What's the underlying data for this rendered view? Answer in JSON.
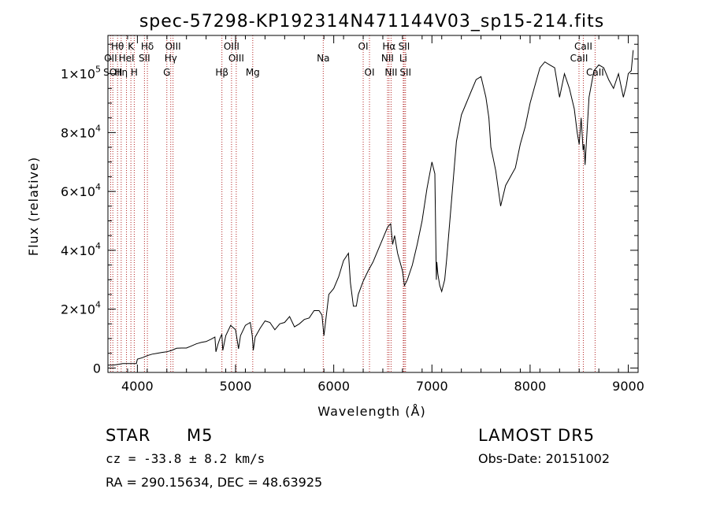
{
  "chart_data": {
    "type": "line",
    "title": "spec-57298-KP192314N471144V03_sp15-214.fits",
    "xlabel": "Wavelength (Å)",
    "ylabel": "Flux (relative)",
    "xlim": [
      3700,
      9100
    ],
    "ylim": [
      -1500,
      113000
    ],
    "x_ticks": [
      4000,
      5000,
      6000,
      7000,
      8000,
      9000
    ],
    "x_tick_labels": [
      "4000",
      "5000",
      "6000",
      "7000",
      "8000",
      "9000"
    ],
    "y_ticks": [
      0,
      20000,
      40000,
      60000,
      80000,
      100000
    ],
    "y_tick_labels": [
      {
        "mant": "0",
        "exp": ""
      },
      {
        "mant": "2×10",
        "exp": "4"
      },
      {
        "mant": "4×10",
        "exp": "4"
      },
      {
        "mant": "6×10",
        "exp": "4"
      },
      {
        "mant": "8×10",
        "exp": "4"
      },
      {
        "mant": "1×10",
        "exp": "5"
      }
    ],
    "series": [
      {
        "color": "#000000",
        "x": [
          3700,
          3750,
          3800,
          3850,
          3900,
          3950,
          3990,
          4000,
          4050,
          4100,
          4150,
          4200,
          4250,
          4300,
          4350,
          4400,
          4450,
          4500,
          4550,
          4600,
          4650,
          4700,
          4750,
          4790,
          4800,
          4820,
          4840,
          4860,
          4870,
          4900,
          4950,
          5000,
          5030,
          5050,
          5100,
          5150,
          5170,
          5180,
          5200,
          5250,
          5300,
          5350,
          5400,
          5450,
          5500,
          5550,
          5600,
          5650,
          5700,
          5750,
          5800,
          5850,
          5880,
          5900,
          5950,
          6000,
          6050,
          6100,
          6150,
          6160,
          6170,
          6200,
          6230,
          6250,
          6300,
          6350,
          6400,
          6450,
          6500,
          6550,
          6580,
          6600,
          6620,
          6650,
          6700,
          6720,
          6750,
          6800,
          6850,
          6900,
          6950,
          7000,
          7030,
          7045,
          7050,
          7060,
          7080,
          7100,
          7130,
          7150,
          7200,
          7250,
          7300,
          7350,
          7400,
          7450,
          7500,
          7550,
          7580,
          7600,
          7620,
          7650,
          7700,
          7750,
          7800,
          7850,
          7900,
          7950,
          8000,
          8050,
          8100,
          8150,
          8200,
          8250,
          8300,
          8350,
          8400,
          8450,
          8480,
          8500,
          8520,
          8540,
          8550,
          8560,
          8600,
          8650,
          8700,
          8750,
          8800,
          8850,
          8900,
          8950,
          8980,
          9000,
          9030,
          9050
        ],
        "y": [
          1000,
          1000,
          1200,
          1500,
          1500,
          1500,
          1500,
          3000,
          3500,
          4200,
          4700,
          5000,
          5300,
          5500,
          6000,
          6700,
          6800,
          6800,
          7500,
          8200,
          8700,
          9000,
          9800,
          10500,
          5500,
          8000,
          10000,
          11500,
          6000,
          11000,
          14500,
          13000,
          6500,
          11000,
          14500,
          15500,
          11000,
          6000,
          10500,
          13500,
          16000,
          15500,
          13000,
          15000,
          15500,
          17500,
          14000,
          15000,
          16500,
          17000,
          19500,
          19500,
          18000,
          11000,
          25000,
          27000,
          31000,
          36500,
          39000,
          34000,
          29000,
          21000,
          21000,
          25000,
          29500,
          33000,
          36000,
          40000,
          44000,
          48000,
          49000,
          42000,
          45000,
          39000,
          33000,
          28000,
          30000,
          35000,
          42000,
          50000,
          61000,
          70000,
          66000,
          30000,
          36000,
          32000,
          28000,
          26000,
          30000,
          37000,
          57000,
          77000,
          86000,
          90000,
          94000,
          98000,
          99000,
          92000,
          85000,
          75000,
          72000,
          67000,
          55000,
          62000,
          65000,
          68000,
          76000,
          82000,
          90000,
          96000,
          102000,
          104000,
          103000,
          102000,
          92000,
          100000,
          95000,
          88000,
          80000,
          76000,
          85000,
          74000,
          76000,
          69000,
          92000,
          101000,
          103000,
          102000,
          98000,
          95000,
          100000,
          92000,
          96000,
          100000,
          101000,
          108000
        ]
      }
    ],
    "lines": [
      {
        "wl": 3727,
        "name": "OII",
        "row": 2
      },
      {
        "wl": 3750,
        "name": "SOII",
        "row": 3
      },
      {
        "wl": 3798,
        "name": "Hθ",
        "row": 1
      },
      {
        "wl": 3835,
        "name": "Hη",
        "row": 3
      },
      {
        "wl": 3889,
        "name": "HeI",
        "row": 2
      },
      {
        "wl": 3934,
        "name": "K",
        "row": 1
      },
      {
        "wl": 3968,
        "name": "H",
        "row": 3
      },
      {
        "wl": 4072,
        "name": "SII",
        "row": 2
      },
      {
        "wl": 4102,
        "name": "Hδ",
        "row": 1
      },
      {
        "wl": 4300,
        "name": "G",
        "row": 3
      },
      {
        "wl": 4340,
        "name": "Hγ",
        "row": 2
      },
      {
        "wl": 4363,
        "name": "OIII",
        "row": 1
      },
      {
        "wl": 4861,
        "name": "Hβ",
        "row": 3
      },
      {
        "wl": 4959,
        "name": "OIII",
        "row": 1
      },
      {
        "wl": 5007,
        "name": "OIII",
        "row": 2
      },
      {
        "wl": 5175,
        "name": "Mg",
        "row": 3
      },
      {
        "wl": 5893,
        "name": "Na",
        "row": 2
      },
      {
        "wl": 6300,
        "name": "OI",
        "row": 1
      },
      {
        "wl": 6364,
        "name": "OI",
        "row": 3
      },
      {
        "wl": 6548,
        "name": "NII",
        "row": 2
      },
      {
        "wl": 6563,
        "name": "Hα",
        "row": 1
      },
      {
        "wl": 6584,
        "name": "NII",
        "row": 3
      },
      {
        "wl": 6708,
        "name": "Li",
        "row": 2
      },
      {
        "wl": 6717,
        "name": "SII",
        "row": 1
      },
      {
        "wl": 6731,
        "name": "SII",
        "row": 3
      },
      {
        "wl": 8498,
        "name": "CaII",
        "row": 2
      },
      {
        "wl": 8542,
        "name": "CaII",
        "row": 1
      },
      {
        "wl": 8662,
        "name": "CaII",
        "row": 3
      }
    ],
    "line_color": "#b22222"
  },
  "footer": {
    "class_label": "STAR",
    "subclass": "M5",
    "survey": "LAMOST  DR5",
    "cz": "cz = -33.8 ± 8.2 km/s",
    "obs_date": "Obs-Date: 20151002",
    "coords": "RA = 290.15634, DEC =  48.63925"
  }
}
